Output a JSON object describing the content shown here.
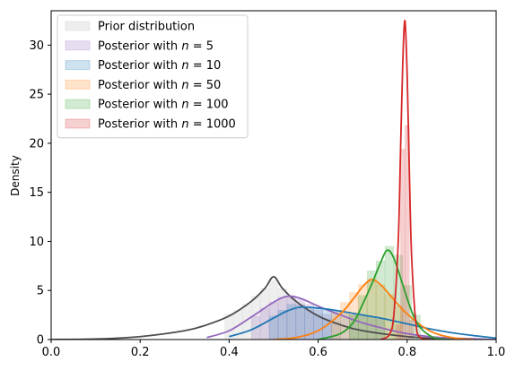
{
  "chart_data": {
    "type": "area",
    "xlabel": "",
    "ylabel": "Density",
    "xlim": [
      0.0,
      1.0
    ],
    "ylim": [
      0,
      33.5
    ],
    "x_ticks": [
      "0.0",
      "0.2",
      "0.4",
      "0.6",
      "0.8",
      "1.0"
    ],
    "y_ticks": [
      "0",
      "5",
      "10",
      "15",
      "20",
      "25",
      "30"
    ],
    "grid": false,
    "legend_position": "top-left",
    "series": [
      {
        "name": "Prior distribution",
        "color": "#4d4d4d",
        "hist_color": "#b3b3b3",
        "curve_x": [
          0.0,
          0.1,
          0.2,
          0.3,
          0.35,
          0.4,
          0.45,
          0.48,
          0.5,
          0.52,
          0.55,
          0.6,
          0.65,
          0.7,
          0.8,
          0.9,
          1.0
        ],
        "curve_y": [
          0.0,
          0.05,
          0.3,
          0.9,
          1.5,
          2.4,
          3.9,
          5.2,
          6.4,
          5.2,
          3.9,
          2.4,
          1.5,
          0.9,
          0.3,
          0.05,
          0.0
        ],
        "hist_x": [
          0.4,
          0.42,
          0.44,
          0.46,
          0.48,
          0.5,
          0.52,
          0.54,
          0.56,
          0.58,
          0.6,
          0.62,
          0.64
        ],
        "hist_y": [
          2.6,
          3.0,
          3.6,
          4.4,
          5.2,
          6.0,
          5.2,
          4.4,
          3.6,
          3.0,
          2.6,
          2.2,
          1.8
        ]
      },
      {
        "name": "Posterior with n = 5",
        "label_prefix": "Posterior with ",
        "label_n": "5",
        "color": "#9467bd",
        "hist_color": "#9467bd",
        "curve_x": [
          0.35,
          0.4,
          0.45,
          0.5,
          0.53,
          0.56,
          0.6,
          0.65,
          0.7,
          0.75,
          0.8,
          0.85,
          0.9,
          1.0
        ],
        "curve_y": [
          0.2,
          0.9,
          2.3,
          3.8,
          4.4,
          4.2,
          3.4,
          2.5,
          1.7,
          1.1,
          0.6,
          0.3,
          0.15,
          0.0
        ],
        "hist_x": [
          0.46,
          0.48,
          0.5,
          0.52,
          0.54,
          0.56,
          0.58,
          0.6,
          0.62
        ],
        "hist_y": [
          2.4,
          3.2,
          3.8,
          4.3,
          4.4,
          4.1,
          3.6,
          3.0,
          2.6
        ]
      },
      {
        "name": "Posterior with n = 10",
        "label_prefix": "Posterior with ",
        "label_n": "10",
        "color": "#1f77b4",
        "hist_color": "#1f77b4",
        "curve_x": [
          0.4,
          0.45,
          0.5,
          0.53,
          0.56,
          0.6,
          0.65,
          0.7,
          0.75,
          0.8,
          0.85,
          0.9,
          0.95,
          1.0
        ],
        "curve_y": [
          0.3,
          1.0,
          2.2,
          2.9,
          3.3,
          3.2,
          2.9,
          2.5,
          2.1,
          1.6,
          1.1,
          0.7,
          0.4,
          0.15
        ],
        "hist_x": [
          0.5,
          0.52,
          0.54,
          0.56,
          0.58,
          0.6,
          0.62,
          0.64,
          0.66,
          0.68,
          0.7,
          0.72,
          0.74
        ],
        "hist_y": [
          2.4,
          3.0,
          3.6,
          3.5,
          3.3,
          3.2,
          3.1,
          2.9,
          2.8,
          2.6,
          2.5,
          2.3,
          2.1
        ]
      },
      {
        "name": "Posterior with n = 50",
        "label_prefix": "Posterior with ",
        "label_n": "50",
        "color": "#ff7f0e",
        "hist_color": "#ff7f0e",
        "curve_x": [
          0.5,
          0.55,
          0.6,
          0.65,
          0.68,
          0.7,
          0.72,
          0.74,
          0.76,
          0.8,
          0.85,
          0.9,
          0.95
        ],
        "curve_y": [
          0.0,
          0.2,
          0.9,
          2.6,
          4.2,
          5.4,
          6.1,
          5.6,
          4.6,
          2.6,
          0.9,
          0.2,
          0.0
        ],
        "hist_x": [
          0.64,
          0.66,
          0.68,
          0.7,
          0.72,
          0.74,
          0.76,
          0.78
        ],
        "hist_y": [
          2.8,
          3.8,
          4.8,
          5.6,
          6.2,
          5.6,
          4.6,
          3.4
        ]
      },
      {
        "name": "Posterior with n = 100",
        "label_prefix": "Posterior with ",
        "label_n": "100",
        "color": "#2ca02c",
        "hist_color": "#2ca02c",
        "curve_x": [
          0.6,
          0.65,
          0.68,
          0.7,
          0.72,
          0.74,
          0.755,
          0.77,
          0.79,
          0.81,
          0.83,
          0.86,
          0.9
        ],
        "curve_y": [
          0.0,
          0.6,
          1.8,
          3.6,
          5.6,
          7.8,
          9.1,
          8.3,
          5.6,
          2.9,
          1.2,
          0.2,
          0.0
        ],
        "hist_x": [
          0.68,
          0.7,
          0.72,
          0.74,
          0.76,
          0.78,
          0.8,
          0.82
        ],
        "hist_y": [
          2.5,
          4.5,
          7.0,
          8.0,
          9.5,
          8.6,
          5.5,
          2.5
        ]
      },
      {
        "name": "Posterior with n = 1000",
        "label_prefix": "Posterior with ",
        "label_n": "1000",
        "color": "#d62728",
        "hist_color": "#d62728",
        "curve_x": [
          0.74,
          0.76,
          0.77,
          0.78,
          0.785,
          0.79,
          0.795,
          0.8,
          0.805,
          0.81,
          0.82,
          0.83,
          0.85
        ],
        "curve_y": [
          0.0,
          0.5,
          2.5,
          10.0,
          19.0,
          28.0,
          32.5,
          27.0,
          17.0,
          8.5,
          1.5,
          0.2,
          0.0
        ],
        "hist_x": [
          0.78,
          0.79,
          0.8,
          0.81
        ],
        "hist_y": [
          1.5,
          19.4,
          21.8,
          2.0
        ]
      }
    ]
  }
}
